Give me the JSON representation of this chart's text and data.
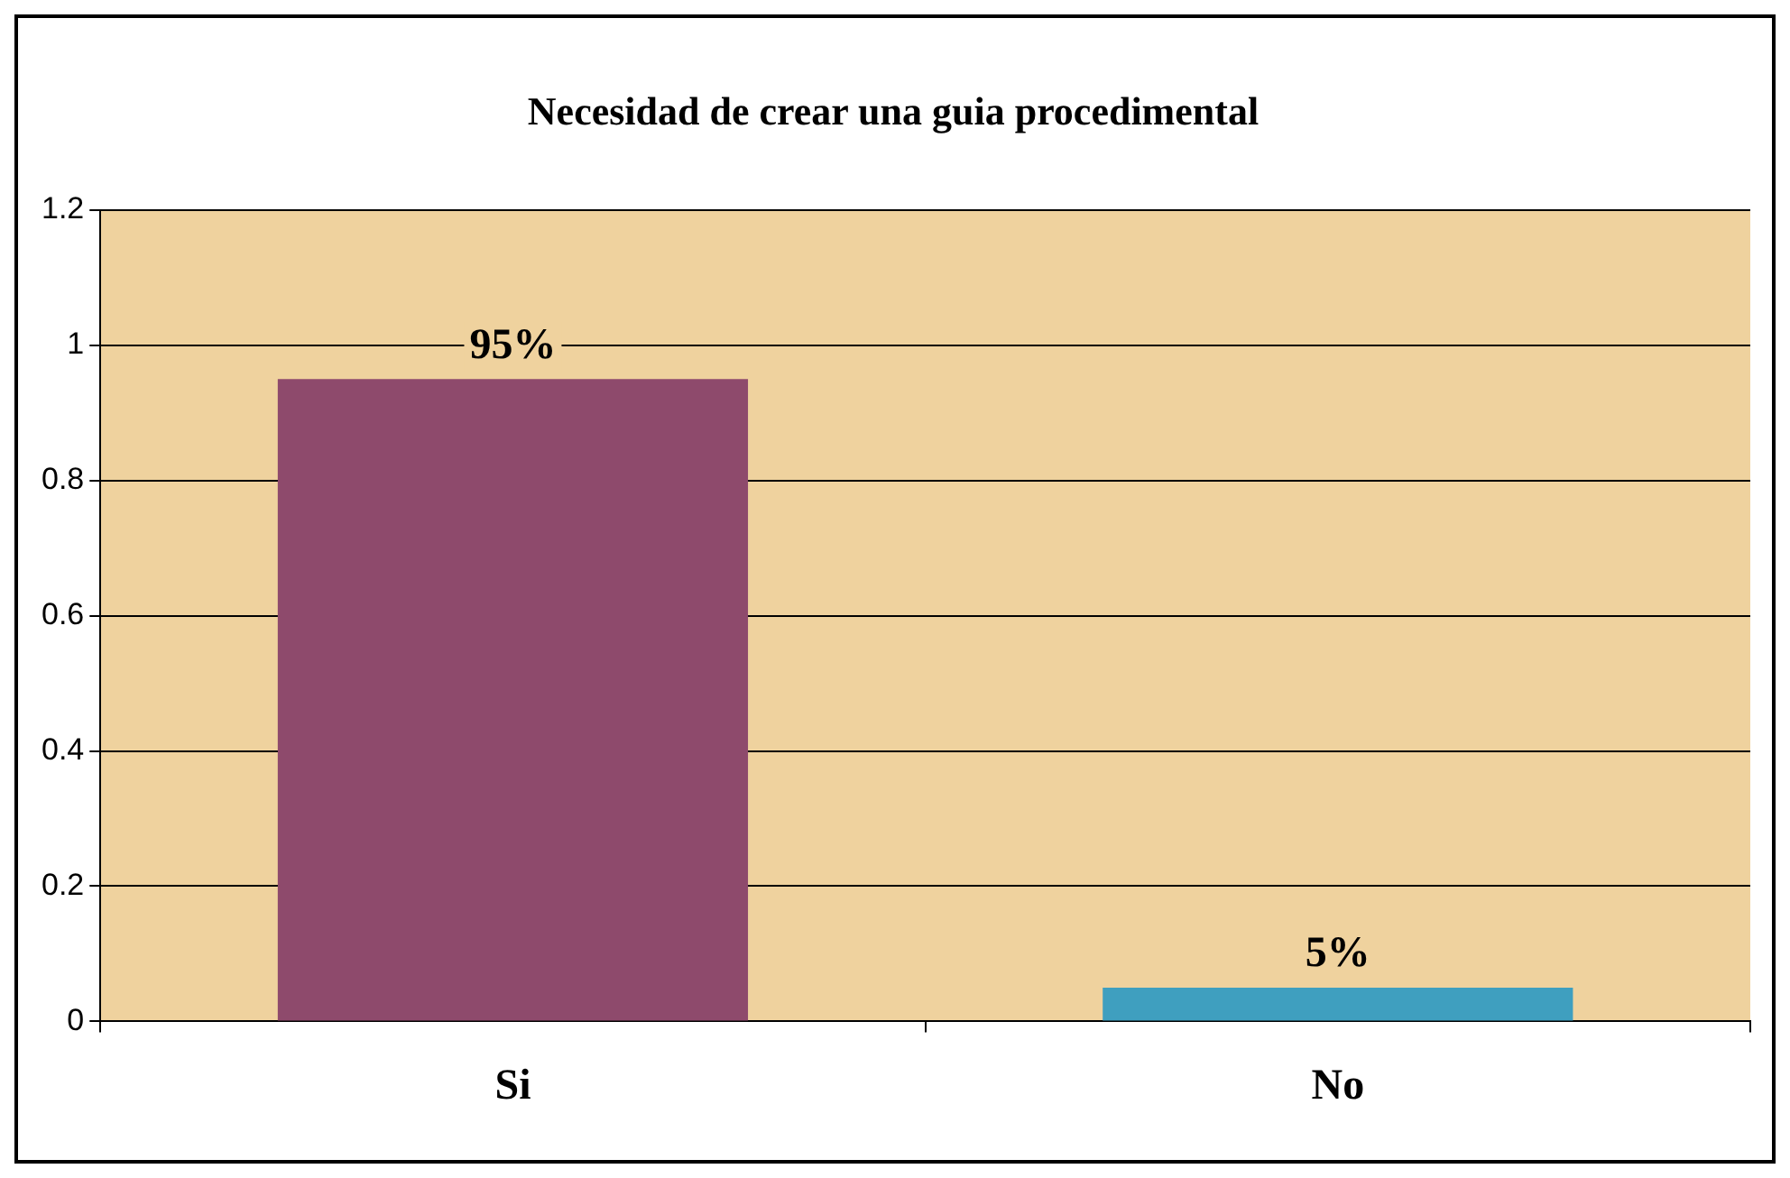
{
  "chart_data": {
    "type": "bar",
    "title": "Necesidad de crear una guia procedimental",
    "categories": [
      "Si",
      "No"
    ],
    "colors": [
      "#8e4a6c",
      "#3f9fbf"
    ],
    "values": [
      0.95,
      0.05
    ],
    "value_labels": [
      "95%",
      "5%"
    ],
    "ylim": [
      0,
      1.2
    ],
    "yticks": [
      0,
      0.2,
      0.4,
      0.6,
      0.8,
      1,
      1.2
    ],
    "grid": "y",
    "legend": false
  }
}
